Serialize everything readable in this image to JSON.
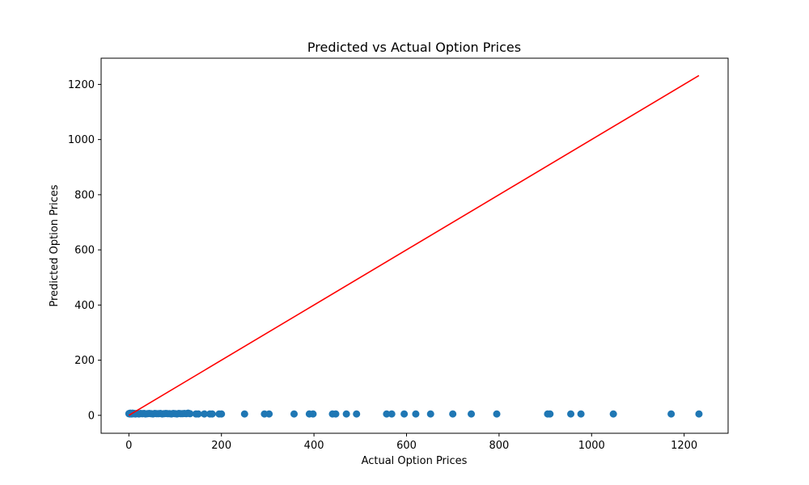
{
  "chart_data": {
    "type": "scatter",
    "title": "Predicted vs Actual Option Prices",
    "xlabel": "Actual Option Prices",
    "ylabel": "Predicted Option Prices",
    "xlim": [
      -60,
      1295
    ],
    "ylim": [
      -65,
      1295
    ],
    "xticks": [
      0,
      200,
      400,
      600,
      800,
      1000,
      1200
    ],
    "yticks": [
      0,
      200,
      400,
      600,
      800,
      1000,
      1200
    ],
    "grid": false,
    "point_color": "#1f77b4",
    "line_color": "#ff0000",
    "reference_line": {
      "x": [
        0,
        1232
      ],
      "y": [
        0,
        1232
      ]
    },
    "points": {
      "x": [
        0,
        1,
        2,
        3,
        4,
        5,
        6,
        7,
        8,
        9,
        10,
        12,
        14,
        16,
        18,
        20,
        22,
        25,
        28,
        30,
        33,
        36,
        40,
        44,
        48,
        52,
        56,
        60,
        64,
        68,
        72,
        76,
        80,
        84,
        88,
        92,
        96,
        100,
        104,
        108,
        112,
        116,
        120,
        124,
        128,
        132,
        145,
        150,
        163,
        175,
        180,
        195,
        200,
        250,
        293,
        303,
        357,
        390,
        398,
        440,
        447,
        470,
        492,
        557,
        568,
        595,
        620,
        652,
        700,
        740,
        795,
        905,
        910,
        955,
        977,
        1047,
        1172,
        1232
      ],
      "y": [
        6,
        7,
        5,
        8,
        6,
        7,
        5,
        6,
        8,
        7,
        6,
        7,
        5,
        6,
        7,
        6,
        5,
        7,
        6,
        6,
        7,
        5,
        6,
        7,
        6,
        5,
        7,
        6,
        6,
        7,
        5,
        6,
        7,
        6,
        6,
        5,
        7,
        6,
        5,
        7,
        6,
        6,
        7,
        6,
        8,
        6,
        5,
        5,
        5,
        5,
        5,
        5,
        5,
        5,
        5,
        5,
        5,
        5,
        5,
        5,
        5,
        5,
        5,
        5,
        5,
        5,
        5,
        5,
        5,
        5,
        5,
        5,
        5,
        5,
        5,
        5,
        5,
        5
      ]
    }
  }
}
